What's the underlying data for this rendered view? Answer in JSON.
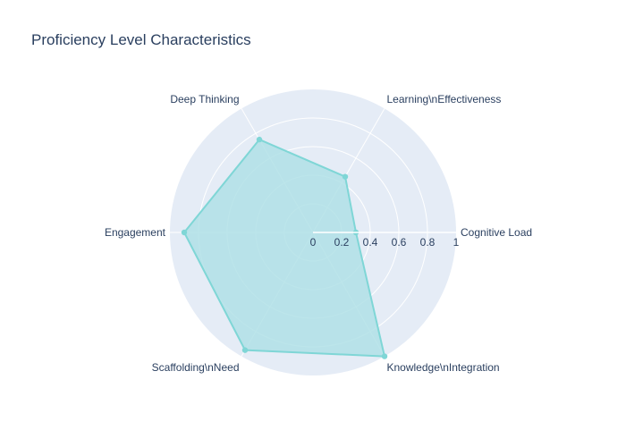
{
  "chart_data": {
    "type": "radar",
    "title": "Proficiency Level Characteristics",
    "axes": [
      "Cognitive Load",
      "Learning\\nEffectiveness",
      "Deep Thinking",
      "Engagement",
      "Scaffolding\\nNeed",
      "Knowledge\\nIntegration"
    ],
    "values": [
      0.3,
      0.45,
      0.75,
      0.9,
      0.95,
      1.0
    ],
    "radial_ticks": [
      "0",
      "0.2",
      "0.4",
      "0.6",
      "0.8",
      "1"
    ],
    "radial_range": [
      0,
      1
    ],
    "angular_start_degrees": 0,
    "direction": "counterclockwise",
    "grid": true,
    "colors": {
      "polar_background": "#e5ecf6",
      "grid": "#ffffff",
      "line": "#7fd6d6",
      "fill": "#b0e0e6",
      "text": "#2a3f5f"
    }
  }
}
